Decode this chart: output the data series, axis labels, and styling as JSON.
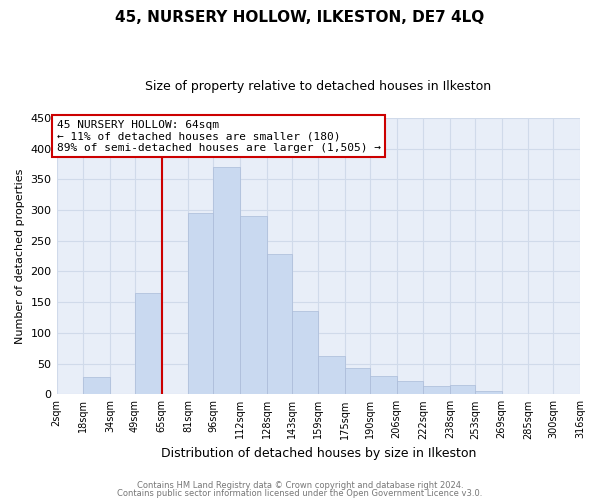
{
  "title": "45, NURSERY HOLLOW, ILKESTON, DE7 4LQ",
  "subtitle": "Size of property relative to detached houses in Ilkeston",
  "xlabel": "Distribution of detached houses by size in Ilkeston",
  "ylabel": "Number of detached properties",
  "bar_edges": [
    2,
    18,
    34,
    49,
    65,
    81,
    96,
    112,
    128,
    143,
    159,
    175,
    190,
    206,
    222,
    238,
    253,
    269,
    285,
    300,
    316
  ],
  "bar_heights": [
    0,
    28,
    0,
    165,
    0,
    295,
    370,
    290,
    228,
    135,
    62,
    43,
    30,
    22,
    13,
    15,
    5,
    0,
    0,
    0
  ],
  "tick_labels": [
    "2sqm",
    "18sqm",
    "34sqm",
    "49sqm",
    "65sqm",
    "81sqm",
    "96sqm",
    "112sqm",
    "128sqm",
    "143sqm",
    "159sqm",
    "175sqm",
    "190sqm",
    "206sqm",
    "222sqm",
    "238sqm",
    "253sqm",
    "269sqm",
    "285sqm",
    "300sqm",
    "316sqm"
  ],
  "bar_color": "#c9d9f0",
  "bar_edge_color": "#aabbd8",
  "vline_x": 65,
  "vline_color": "#cc0000",
  "annotation_line1": "45 NURSERY HOLLOW: 64sqm",
  "annotation_line2": "← 11% of detached houses are smaller (180)",
  "annotation_line3": "89% of semi-detached houses are larger (1,505) →",
  "annotation_box_color": "#ffffff",
  "annotation_box_edge": "#cc0000",
  "ylim": [
    0,
    450
  ],
  "yticks": [
    0,
    50,
    100,
    150,
    200,
    250,
    300,
    350,
    400,
    450
  ],
  "grid_color": "#d0daea",
  "plot_bg_color": "#e8eef8",
  "fig_bg_color": "#ffffff",
  "footer1": "Contains HM Land Registry data © Crown copyright and database right 2024.",
  "footer2": "Contains public sector information licensed under the Open Government Licence v3.0.",
  "title_fontsize": 11,
  "subtitle_fontsize": 9,
  "xlabel_fontsize": 9,
  "ylabel_fontsize": 8,
  "tick_fontsize": 7,
  "footer_fontsize": 6,
  "annotation_fontsize": 8
}
